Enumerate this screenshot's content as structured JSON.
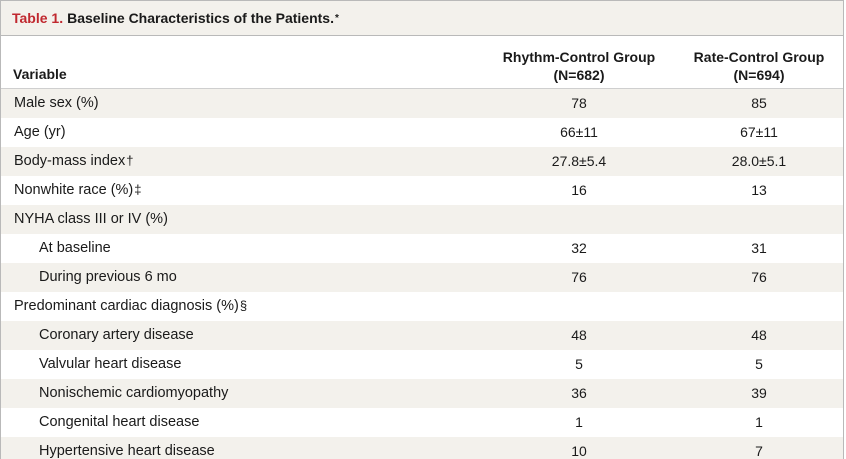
{
  "caption": {
    "number": "Table 1.",
    "title": "Baseline Characteristics of the Patients.",
    "symbol": "*"
  },
  "header": {
    "variable": "Variable",
    "col1_line1": "Rhythm-Control Group",
    "col1_line2": "(N=682)",
    "col2_line1": "Rate-Control Group",
    "col2_line2": "(N=694)"
  },
  "rows": [
    {
      "label": "Male sex (%)",
      "fn": "",
      "rhythm": "78",
      "rate": "85"
    },
    {
      "label": "Age (yr)",
      "fn": "",
      "rhythm": "66±11",
      "rate": "67±11"
    },
    {
      "label": "Body-mass index",
      "fn": "†",
      "rhythm": "27.8±5.4",
      "rate": "28.0±5.1"
    },
    {
      "label": "Nonwhite race (%)",
      "fn": "‡",
      "rhythm": "16",
      "rate": "13"
    },
    {
      "label": "NYHA class III or IV (%)",
      "fn": "",
      "rhythm": "",
      "rate": ""
    },
    {
      "label": "At baseline",
      "fn": "",
      "rhythm": "32",
      "rate": "31"
    },
    {
      "label": "During previous 6 mo",
      "fn": "",
      "rhythm": "76",
      "rate": "76"
    },
    {
      "label": "Predominant cardiac diagnosis (%)",
      "fn": "§",
      "rhythm": "",
      "rate": ""
    },
    {
      "label": "Coronary artery disease",
      "fn": "",
      "rhythm": "48",
      "rate": "48"
    },
    {
      "label": "Valvular heart disease",
      "fn": "",
      "rhythm": "5",
      "rate": "5"
    },
    {
      "label": "Nonischemic cardiomyopathy",
      "fn": "",
      "rhythm": "36",
      "rate": "39"
    },
    {
      "label": "Congenital heart disease",
      "fn": "",
      "rhythm": "1",
      "rate": "1"
    },
    {
      "label": "Hypertensive heart disease",
      "fn": "",
      "rhythm": "10",
      "rate": "7"
    }
  ]
}
